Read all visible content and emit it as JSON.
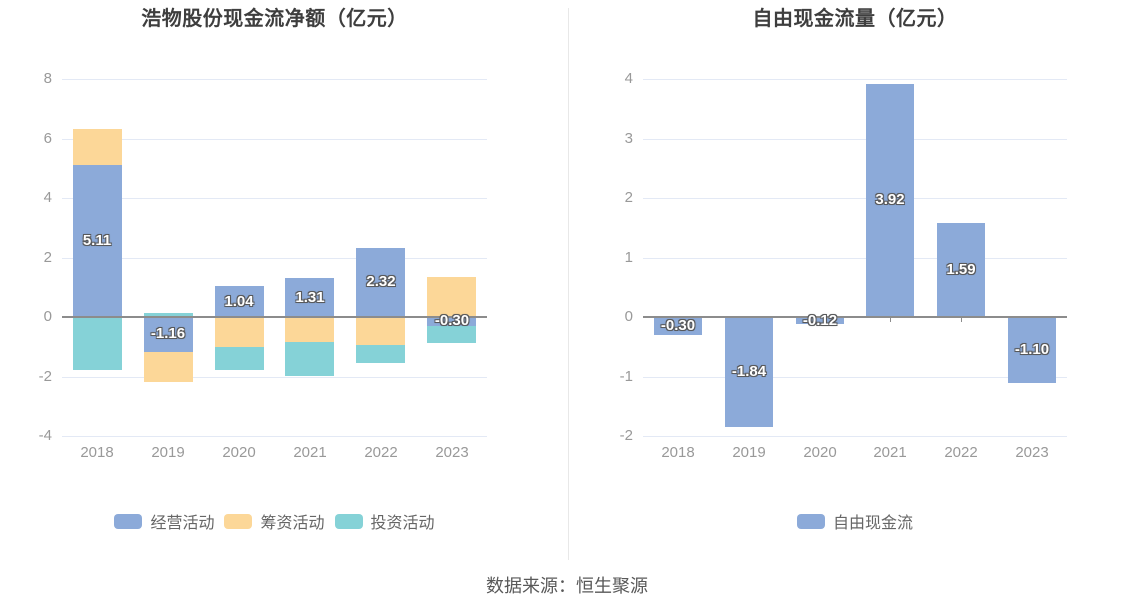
{
  "footer": {
    "text": "数据来源：恒生聚源"
  },
  "chart_data": [
    {
      "type": "bar",
      "stacked": true,
      "title": "浩物股份现金流净额（亿元）",
      "categories": [
        "2018",
        "2019",
        "2020",
        "2021",
        "2022",
        "2023"
      ],
      "series": [
        {
          "name": "经营活动",
          "color": "#8caad9",
          "values": [
            5.11,
            -1.16,
            1.04,
            1.31,
            2.32,
            -0.3
          ],
          "labels": [
            "5.11",
            "-1.16",
            "1.04",
            "1.31",
            "2.32",
            "-0.30"
          ],
          "show_labels": true
        },
        {
          "name": "筹资活动",
          "color": "#fcd798",
          "values": [
            1.22,
            -1.0,
            -1.0,
            -0.82,
            -0.92,
            1.35
          ],
          "show_labels": false
        },
        {
          "name": "投资活动",
          "color": "#85d2d7",
          "values": [
            -1.78,
            0.15,
            -0.75,
            -1.15,
            -0.62,
            -0.55
          ],
          "show_labels": false
        }
      ],
      "y_axis": {
        "min": -4,
        "max": 8,
        "interval": 2,
        "ticks": [
          8,
          6,
          4,
          2,
          0,
          -2,
          -4
        ]
      },
      "legend": [
        "经营活动",
        "筹资活动",
        "投资活动"
      ],
      "legend_position": "bottom",
      "grid": true
    },
    {
      "type": "bar",
      "stacked": false,
      "title": "自由现金流量（亿元）",
      "categories": [
        "2018",
        "2019",
        "2020",
        "2021",
        "2022",
        "2023"
      ],
      "series": [
        {
          "name": "自由现金流",
          "color": "#8caad9",
          "values": [
            -0.3,
            -1.84,
            -0.12,
            3.92,
            1.59,
            -1.1
          ],
          "labels": [
            "-0.30",
            "-1.84",
            "-0.12",
            "3.92",
            "1.59",
            "-1.10"
          ],
          "show_labels": true
        }
      ],
      "y_axis": {
        "min": -2,
        "max": 4,
        "interval": 1,
        "ticks": [
          4,
          3,
          2,
          1,
          0,
          -1,
          -2
        ]
      },
      "legend": [
        "自由现金流"
      ],
      "legend_position": "bottom",
      "grid": true
    }
  ]
}
